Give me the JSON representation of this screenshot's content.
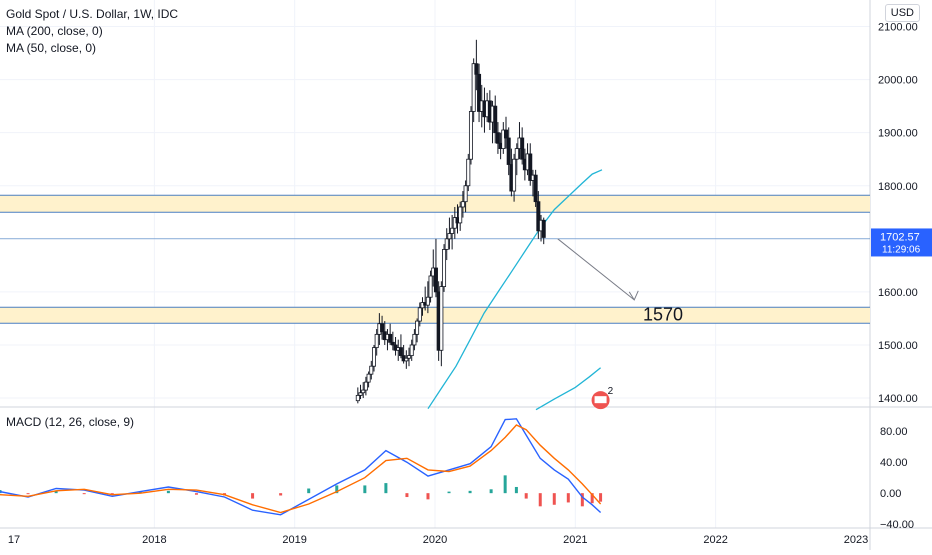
{
  "header": {
    "title": "Gold Spot / U.S. Dollar, 1W, IDC",
    "ma200": "MA (200, close, 0)",
    "ma50": "MA (50, close, 0)",
    "currency": "USD",
    "macd_label": "MACD (12, 26, close, 9)"
  },
  "colors": {
    "up": "#26a69a",
    "down": "#ef5350",
    "candle": "#131722",
    "ma": "#22b5d6",
    "macd": "#2962ff",
    "signal": "#ff6d00",
    "zone": "#fff2cc",
    "zone_line": "#4a7fc1",
    "price_label": "#2962ff"
  },
  "chart_data": [
    {
      "type": "candlestick",
      "title": "Gold Spot / U.S. Dollar, 1W, IDC",
      "ylim": [
        1385,
        2150
      ],
      "yticks": [
        "2100.00",
        "2000.00",
        "1900.00",
        "1800.00",
        "1700.00",
        "1600.00",
        "1500.00",
        "1400.00"
      ],
      "xticks": [
        "17",
        "2018",
        "2019",
        "2020",
        "2021",
        "2022",
        "2023"
      ],
      "xlim": [
        2016.9,
        2023.1
      ],
      "current_price": "1702.57",
      "countdown": "11:29:06",
      "annotation": "1570",
      "ohlc_start": 2019.45,
      "ohlc_step": 0.0192,
      "ohlc": [
        [
          1395,
          1420,
          1390,
          1405
        ],
        [
          1405,
          1425,
          1398,
          1410
        ],
        [
          1410,
          1430,
          1400,
          1415
        ],
        [
          1415,
          1440,
          1405,
          1430
        ],
        [
          1430,
          1450,
          1420,
          1445
        ],
        [
          1445,
          1470,
          1435,
          1460
        ],
        [
          1460,
          1500,
          1450,
          1495
        ],
        [
          1495,
          1530,
          1480,
          1520
        ],
        [
          1520,
          1560,
          1500,
          1540
        ],
        [
          1540,
          1555,
          1510,
          1525
        ],
        [
          1525,
          1545,
          1500,
          1510
        ],
        [
          1510,
          1530,
          1490,
          1520
        ],
        [
          1520,
          1540,
          1500,
          1505
        ],
        [
          1505,
          1525,
          1490,
          1500
        ],
        [
          1500,
          1515,
          1480,
          1490
        ],
        [
          1490,
          1510,
          1470,
          1495
        ],
        [
          1495,
          1520,
          1475,
          1480
        ],
        [
          1480,
          1500,
          1465,
          1470
        ],
        [
          1470,
          1490,
          1455,
          1475
        ],
        [
          1475,
          1495,
          1460,
          1480
        ],
        [
          1480,
          1510,
          1470,
          1500
        ],
        [
          1500,
          1530,
          1490,
          1520
        ],
        [
          1520,
          1550,
          1505,
          1545
        ],
        [
          1545,
          1580,
          1535,
          1570
        ],
        [
          1570,
          1590,
          1555,
          1580
        ],
        [
          1580,
          1610,
          1565,
          1575
        ],
        [
          1575,
          1620,
          1560,
          1590
        ],
        [
          1590,
          1640,
          1580,
          1630
        ],
        [
          1630,
          1680,
          1610,
          1645
        ],
        [
          1645,
          1700,
          1590,
          1600
        ],
        [
          1600,
          1620,
          1470,
          1490
        ],
        [
          1490,
          1620,
          1460,
          1610
        ],
        [
          1610,
          1690,
          1600,
          1680
        ],
        [
          1680,
          1720,
          1660,
          1700
        ],
        [
          1700,
          1740,
          1680,
          1710
        ],
        [
          1710,
          1745,
          1680,
          1720
        ],
        [
          1720,
          1760,
          1700,
          1740
        ],
        [
          1740,
          1765,
          1710,
          1730
        ],
        [
          1730,
          1770,
          1715,
          1760
        ],
        [
          1760,
          1790,
          1740,
          1770
        ],
        [
          1770,
          1810,
          1750,
          1800
        ],
        [
          1800,
          1860,
          1790,
          1850
        ],
        [
          1850,
          1950,
          1840,
          1940
        ],
        [
          1940,
          2040,
          1920,
          2030
        ],
        [
          2030,
          2075,
          1980,
          2010
        ],
        [
          2010,
          2030,
          1920,
          1940
        ],
        [
          1940,
          1990,
          1910,
          1960
        ],
        [
          1960,
          1985,
          1900,
          1930
        ],
        [
          1930,
          1975,
          1920,
          1960
        ],
        [
          1960,
          1980,
          1905,
          1920
        ],
        [
          1920,
          1960,
          1880,
          1950
        ],
        [
          1950,
          1970,
          1880,
          1900
        ],
        [
          1900,
          1920,
          1860,
          1880
        ],
        [
          1880,
          1900,
          1850,
          1870
        ],
        [
          1870,
          1920,
          1860,
          1905
        ],
        [
          1905,
          1930,
          1870,
          1890
        ],
        [
          1890,
          1910,
          1820,
          1840
        ],
        [
          1840,
          1870,
          1780,
          1790
        ],
        [
          1790,
          1860,
          1770,
          1850
        ],
        [
          1850,
          1880,
          1820,
          1870
        ],
        [
          1870,
          1920,
          1850,
          1890
        ],
        [
          1890,
          1910,
          1840,
          1850
        ],
        [
          1850,
          1870,
          1810,
          1830
        ],
        [
          1830,
          1880,
          1820,
          1860
        ],
        [
          1860,
          1880,
          1800,
          1810
        ],
        [
          1810,
          1830,
          1780,
          1820
        ],
        [
          1820,
          1830,
          1760,
          1770
        ],
        [
          1770,
          1790,
          1700,
          1715
        ],
        [
          1715,
          1745,
          1695,
          1735
        ],
        [
          1735,
          1740,
          1690,
          1702.57
        ]
      ],
      "ma_lines": [
        {
          "name": "MA (50, close, 0)",
          "points": [
            [
              2019.95,
              1380
            ],
            [
              2020.05,
              1420
            ],
            [
              2020.15,
              1460
            ],
            [
              2020.25,
              1510
            ],
            [
              2020.35,
              1560
            ],
            [
              2020.45,
              1600
            ],
            [
              2020.55,
              1640
            ],
            [
              2020.65,
              1680
            ],
            [
              2020.75,
              1720
            ],
            [
              2020.85,
              1755
            ],
            [
              2020.95,
              1780
            ],
            [
              2021.05,
              1805
            ],
            [
              2021.12,
              1822
            ],
            [
              2021.19,
              1830
            ]
          ]
        },
        {
          "name": "MA (200, close, 0)",
          "points": [
            [
              2020.72,
              1378
            ],
            [
              2020.85,
              1398
            ],
            [
              2021.0,
              1420
            ],
            [
              2021.1,
              1440
            ],
            [
              2021.18,
              1457
            ]
          ]
        }
      ],
      "zones": [
        [
          1750,
          1782
        ],
        [
          1541,
          1571
        ]
      ],
      "hlines": [
        1700
      ]
    },
    {
      "type": "line",
      "title": "MACD (12, 26, close, 9)",
      "ylim": [
        -45,
        110
      ],
      "yticks": [
        "80.00",
        "40.00",
        "0.00",
        "−40.00"
      ],
      "x": [
        2016.9,
        2017.1,
        2017.3,
        2017.5,
        2017.7,
        2017.9,
        2018.1,
        2018.3,
        2018.5,
        2018.7,
        2018.9,
        2019.1,
        2019.3,
        2019.5,
        2019.65,
        2019.8,
        2019.95,
        2020.1,
        2020.25,
        2020.4,
        2020.5,
        2020.58,
        2020.65,
        2020.75,
        2020.85,
        2020.95,
        2021.05,
        2021.12,
        2021.18
      ],
      "series": [
        {
          "name": "MACD",
          "values": [
            2,
            -5,
            6,
            4,
            -4,
            2,
            8,
            2,
            -5,
            -22,
            -28,
            -8,
            12,
            30,
            55,
            40,
            22,
            30,
            38,
            60,
            95,
            96,
            75,
            45,
            30,
            18,
            -5,
            -15,
            -25
          ]
        },
        {
          "name": "Signal",
          "values": [
            -2,
            -4,
            3,
            5,
            -2,
            0,
            5,
            4,
            -2,
            -15,
            -25,
            -14,
            2,
            20,
            42,
            45,
            30,
            28,
            35,
            55,
            72,
            88,
            82,
            62,
            45,
            30,
            12,
            -2,
            -14
          ]
        },
        {
          "name": "Histogram",
          "values": [
            4,
            -1,
            3,
            -1,
            -2,
            2,
            3,
            -2,
            -3,
            -7,
            -3,
            6,
            10,
            10,
            13,
            -5,
            -8,
            2,
            3,
            5,
            23,
            8,
            -7,
            -17,
            -15,
            -12,
            -17,
            -13,
            -11
          ]
        }
      ]
    }
  ]
}
